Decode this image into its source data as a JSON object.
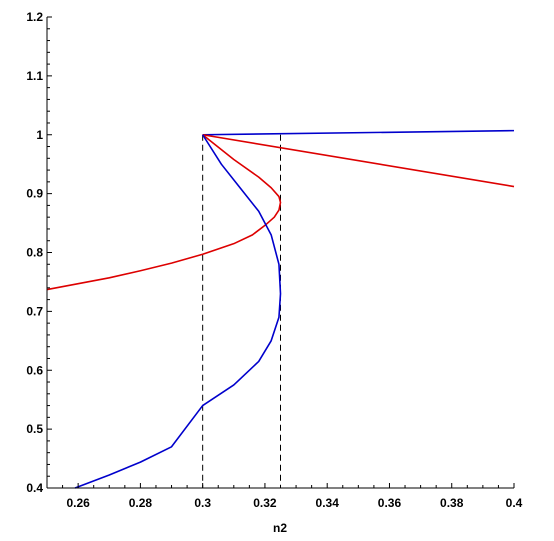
{
  "chart_data": {
    "type": "line",
    "title": "",
    "xlabel": "n2",
    "ylabel": "",
    "xlim": [
      0.25,
      0.4
    ],
    "ylim": [
      0.4,
      1.2
    ],
    "x_ticks": [
      0.26,
      0.28,
      0.3,
      0.32,
      0.34,
      0.36,
      0.38,
      0.4
    ],
    "x_tick_labels": [
      "0.26",
      "0.28",
      "0.3",
      "0.32",
      "0.34",
      "0.36",
      "0.38",
      "0.4"
    ],
    "y_ticks": [
      0.4,
      0.5,
      0.6,
      0.7,
      0.8,
      0.9,
      1,
      1.1,
      1.2
    ],
    "y_tick_labels": [
      "0.4",
      "0.5",
      "0.6",
      "0.7",
      "0.8",
      "0.9",
      "1",
      "1.1",
      "1.2"
    ],
    "grid": false,
    "legend": "none",
    "vertical_dashed_lines": [
      0.3,
      0.325
    ],
    "colors": {
      "blue": "#0000cc",
      "red": "#dd0000",
      "axis": "#000000"
    },
    "series": [
      {
        "color": "blue",
        "points": [
          [
            0.3,
            1.0
          ],
          [
            0.4,
            1.007
          ]
        ]
      },
      {
        "color": "red",
        "points": [
          [
            0.3,
            1.0
          ],
          [
            0.4,
            0.912
          ]
        ]
      },
      {
        "color": "red",
        "points": [
          [
            0.25,
            0.737
          ],
          [
            0.26,
            0.747
          ],
          [
            0.27,
            0.757
          ],
          [
            0.28,
            0.769
          ],
          [
            0.29,
            0.782
          ],
          [
            0.3,
            0.797
          ],
          [
            0.31,
            0.815
          ],
          [
            0.316,
            0.83
          ],
          [
            0.32,
            0.846
          ],
          [
            0.323,
            0.86
          ],
          [
            0.3245,
            0.872
          ],
          [
            0.325,
            0.885
          ],
          [
            0.3245,
            0.895
          ],
          [
            0.322,
            0.91
          ],
          [
            0.318,
            0.928
          ],
          [
            0.31,
            0.958
          ],
          [
            0.3,
            1.0
          ]
        ]
      },
      {
        "color": "blue",
        "points": [
          [
            0.259,
            0.4
          ],
          [
            0.27,
            0.422
          ],
          [
            0.28,
            0.444
          ],
          [
            0.29,
            0.47
          ],
          [
            0.3,
            0.54
          ],
          [
            0.31,
            0.575
          ],
          [
            0.318,
            0.615
          ],
          [
            0.322,
            0.65
          ],
          [
            0.3245,
            0.69
          ],
          [
            0.325,
            0.73
          ],
          [
            0.3245,
            0.78
          ],
          [
            0.322,
            0.83
          ],
          [
            0.318,
            0.87
          ],
          [
            0.312,
            0.91
          ],
          [
            0.306,
            0.95
          ],
          [
            0.3,
            1.0
          ]
        ]
      }
    ]
  }
}
